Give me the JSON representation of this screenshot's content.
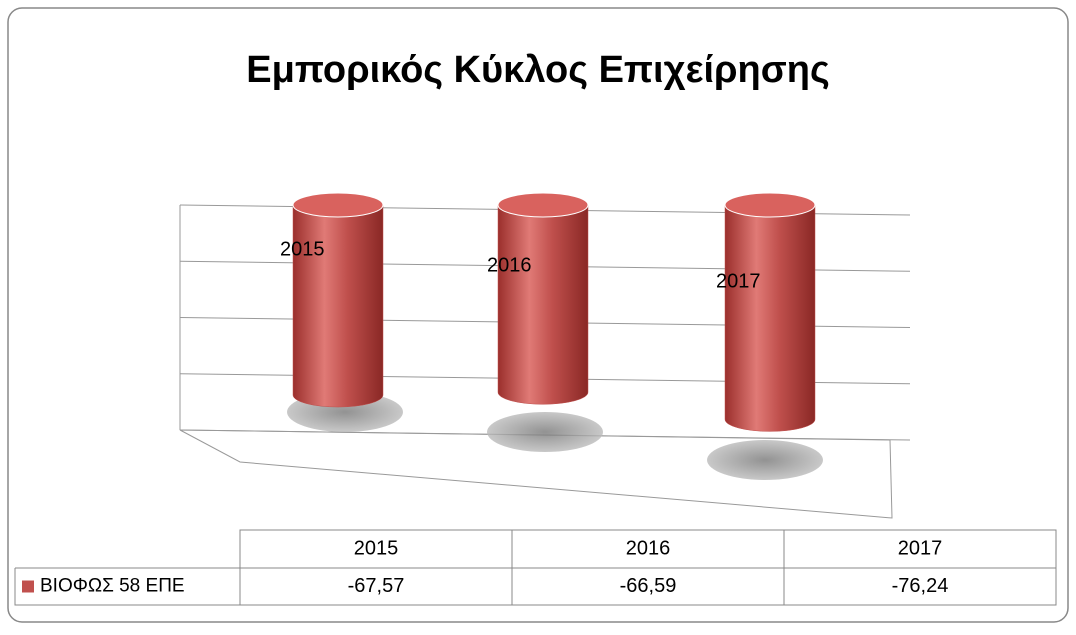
{
  "chart_data": {
    "type": "cylinder3d",
    "title": "Εμπορικός Κύκλος Επιχείρησης",
    "categories": [
      "2015",
      "2016",
      "2017"
    ],
    "series": [
      {
        "name": "ΒΙΟΦΩΣ 58 ΕΠΕ",
        "color": "#c0504d",
        "values": [
          -67.57,
          -66.59,
          -76.24
        ],
        "value_labels": [
          "-67,57",
          "-66,59",
          "-76,24"
        ]
      }
    ],
    "ylim": [
      -80,
      0
    ],
    "yticks": [
      -80,
      -60,
      -40,
      -20,
      0
    ],
    "grid": true,
    "data_table": true
  }
}
